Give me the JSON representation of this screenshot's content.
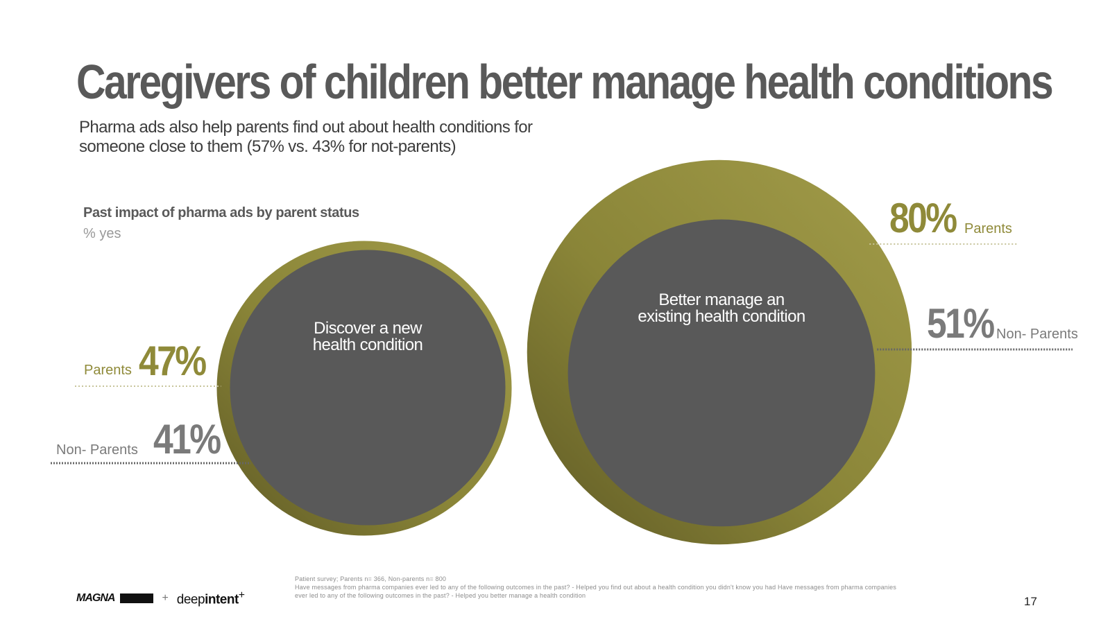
{
  "title": "Caregivers of children better manage health conditions",
  "subtitle": "Pharma ads also help parents find out about health conditions for someone close to them (57% vs. 43% for not-parents)",
  "chart_data": {
    "type": "bubble",
    "title": "Past impact of pharma ads by parent status",
    "unit_label": "% yes",
    "categories": [
      "Discover a new health condition",
      "Better manage an existing health condition"
    ],
    "series": [
      {
        "name": "Parents",
        "values": [
          47,
          80
        ],
        "color": "#8f8a39"
      },
      {
        "name": "Non- Parents",
        "values": [
          41,
          51
        ],
        "color": "#595959"
      }
    ],
    "value_labels": {
      "parents": [
        "47%",
        "80%"
      ],
      "non_parents": [
        "41%",
        "51%"
      ]
    },
    "series_labels": {
      "parents": "Parents",
      "non_parents": "Non- Parents"
    },
    "legend": "inline-labels"
  },
  "colors": {
    "olive": "#8f8a39",
    "olive_dark": "#6f6a2e",
    "gray": "#595959",
    "label_gray": "#7a7a7a"
  },
  "source": {
    "line1": "Patient survey; Parents n= 366, Non-parents n= 800",
    "line2": "Have messages from pharma companies ever led to any of the following outcomes in the past? - Helped you find out about a health condition you didn't know you had Have messages from pharma companies ever led to any of the following outcomes in the past? - Helped you better manage a health condition"
  },
  "footer": {
    "logo_primary": "MAGNA",
    "logo_plus": "+",
    "logo_partner_light": "deep",
    "logo_partner_bold": "intent",
    "logo_partner_mark": "+"
  },
  "page_number": "17"
}
